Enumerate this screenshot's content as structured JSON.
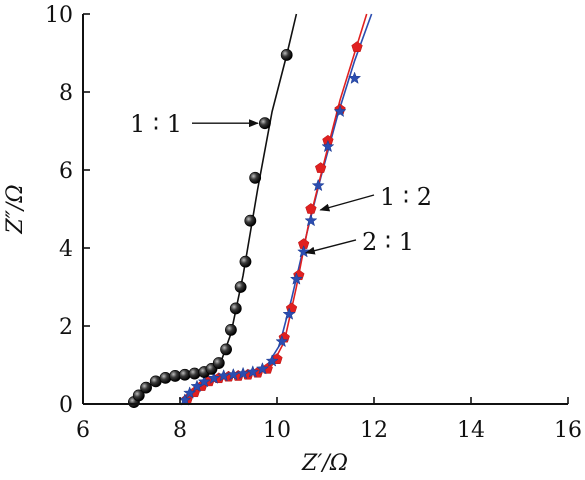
{
  "chart_data": {
    "type": "scatter",
    "xlabel": "Z′/Ω",
    "ylabel": "Z″/Ω",
    "xlim": [
      6,
      16
    ],
    "ylim": [
      0,
      10
    ],
    "x_ticks": [
      6,
      8,
      10,
      12,
      14,
      16
    ],
    "y_ticks": [
      0,
      2,
      4,
      6,
      8,
      10
    ],
    "x_tick_labels": [
      "6",
      "8",
      "10",
      "12",
      "14",
      "16"
    ],
    "y_tick_labels": [
      "0",
      "2",
      "4",
      "6",
      "8",
      "10"
    ],
    "grid": false,
    "legend": "none",
    "series": [
      {
        "name": "1 ∶ 1",
        "color": "#111111",
        "marker": "sphere",
        "points": [
          [
            7.05,
            0.05
          ],
          [
            7.15,
            0.22
          ],
          [
            7.3,
            0.42
          ],
          [
            7.5,
            0.58
          ],
          [
            7.7,
            0.67
          ],
          [
            7.9,
            0.72
          ],
          [
            8.1,
            0.75
          ],
          [
            8.3,
            0.78
          ],
          [
            8.5,
            0.82
          ],
          [
            8.65,
            0.9
          ],
          [
            8.8,
            1.05
          ],
          [
            8.95,
            1.4
          ],
          [
            9.05,
            1.9
          ],
          [
            9.15,
            2.45
          ],
          [
            9.25,
            3.0
          ],
          [
            9.35,
            3.65
          ],
          [
            9.45,
            4.7
          ],
          [
            9.55,
            5.8
          ],
          [
            9.75,
            7.2
          ],
          [
            10.2,
            8.95
          ]
        ],
        "fit": [
          [
            7.0,
            0.0
          ],
          [
            7.2,
            0.35
          ],
          [
            7.5,
            0.58
          ],
          [
            7.9,
            0.71
          ],
          [
            8.3,
            0.77
          ],
          [
            8.6,
            0.86
          ],
          [
            8.85,
            1.1
          ],
          [
            9.05,
            1.8
          ],
          [
            9.3,
            3.3
          ],
          [
            9.6,
            5.5
          ],
          [
            9.9,
            7.5
          ],
          [
            10.2,
            8.95
          ],
          [
            10.4,
            10.0
          ]
        ]
      },
      {
        "name": "1 ∶ 2",
        "color": "#2b4db0",
        "marker": "star",
        "points": [
          [
            8.1,
            0.1
          ],
          [
            8.2,
            0.28
          ],
          [
            8.35,
            0.45
          ],
          [
            8.5,
            0.57
          ],
          [
            8.7,
            0.66
          ],
          [
            8.9,
            0.72
          ],
          [
            9.1,
            0.75
          ],
          [
            9.3,
            0.78
          ],
          [
            9.5,
            0.82
          ],
          [
            9.7,
            0.9
          ],
          [
            9.9,
            1.1
          ],
          [
            10.1,
            1.6
          ],
          [
            10.25,
            2.3
          ],
          [
            10.4,
            3.2
          ],
          [
            10.55,
            3.9
          ],
          [
            10.7,
            4.7
          ],
          [
            10.85,
            5.6
          ],
          [
            11.05,
            6.6
          ],
          [
            11.3,
            7.5
          ],
          [
            11.6,
            8.35
          ]
        ],
        "fit": [
          [
            8.05,
            0.0
          ],
          [
            8.3,
            0.4
          ],
          [
            8.7,
            0.64
          ],
          [
            9.1,
            0.74
          ],
          [
            9.5,
            0.82
          ],
          [
            9.8,
            1.0
          ],
          [
            10.05,
            1.5
          ],
          [
            10.3,
            2.7
          ],
          [
            10.6,
            4.3
          ],
          [
            10.9,
            5.8
          ],
          [
            11.25,
            7.4
          ],
          [
            11.6,
            8.8
          ],
          [
            11.95,
            10.0
          ]
        ]
      },
      {
        "name": "2 ∶ 1",
        "color": "#e02020",
        "marker": "pentagon",
        "points": [
          [
            8.15,
            0.12
          ],
          [
            8.3,
            0.3
          ],
          [
            8.45,
            0.46
          ],
          [
            8.6,
            0.58
          ],
          [
            8.8,
            0.66
          ],
          [
            9.0,
            0.7
          ],
          [
            9.2,
            0.72
          ],
          [
            9.4,
            0.75
          ],
          [
            9.6,
            0.8
          ],
          [
            9.8,
            0.9
          ],
          [
            10.0,
            1.15
          ],
          [
            10.15,
            1.7
          ],
          [
            10.3,
            2.45
          ],
          [
            10.45,
            3.3
          ],
          [
            10.55,
            4.1
          ],
          [
            10.7,
            5.0
          ],
          [
            10.9,
            6.05
          ],
          [
            11.05,
            6.75
          ],
          [
            11.3,
            7.55
          ],
          [
            11.65,
            9.15
          ]
        ],
        "fit": [
          [
            8.1,
            0.0
          ],
          [
            8.4,
            0.42
          ],
          [
            8.8,
            0.63
          ],
          [
            9.2,
            0.71
          ],
          [
            9.6,
            0.79
          ],
          [
            9.9,
            1.0
          ],
          [
            10.15,
            1.6
          ],
          [
            10.4,
            3.0
          ],
          [
            10.65,
            4.6
          ],
          [
            10.95,
            6.1
          ],
          [
            11.3,
            7.8
          ],
          [
            11.65,
            9.2
          ],
          [
            11.85,
            10.0
          ]
        ]
      }
    ],
    "annotations": [
      {
        "text": "1 ∶ 1",
        "target": [
          9.75,
          7.2
        ],
        "side": "left"
      },
      {
        "text": "1 ∶ 2",
        "target": [
          10.75,
          5.0
        ],
        "side": "right"
      },
      {
        "text": "2 ∶ 1",
        "target": [
          10.45,
          3.9
        ],
        "side": "right"
      }
    ]
  }
}
